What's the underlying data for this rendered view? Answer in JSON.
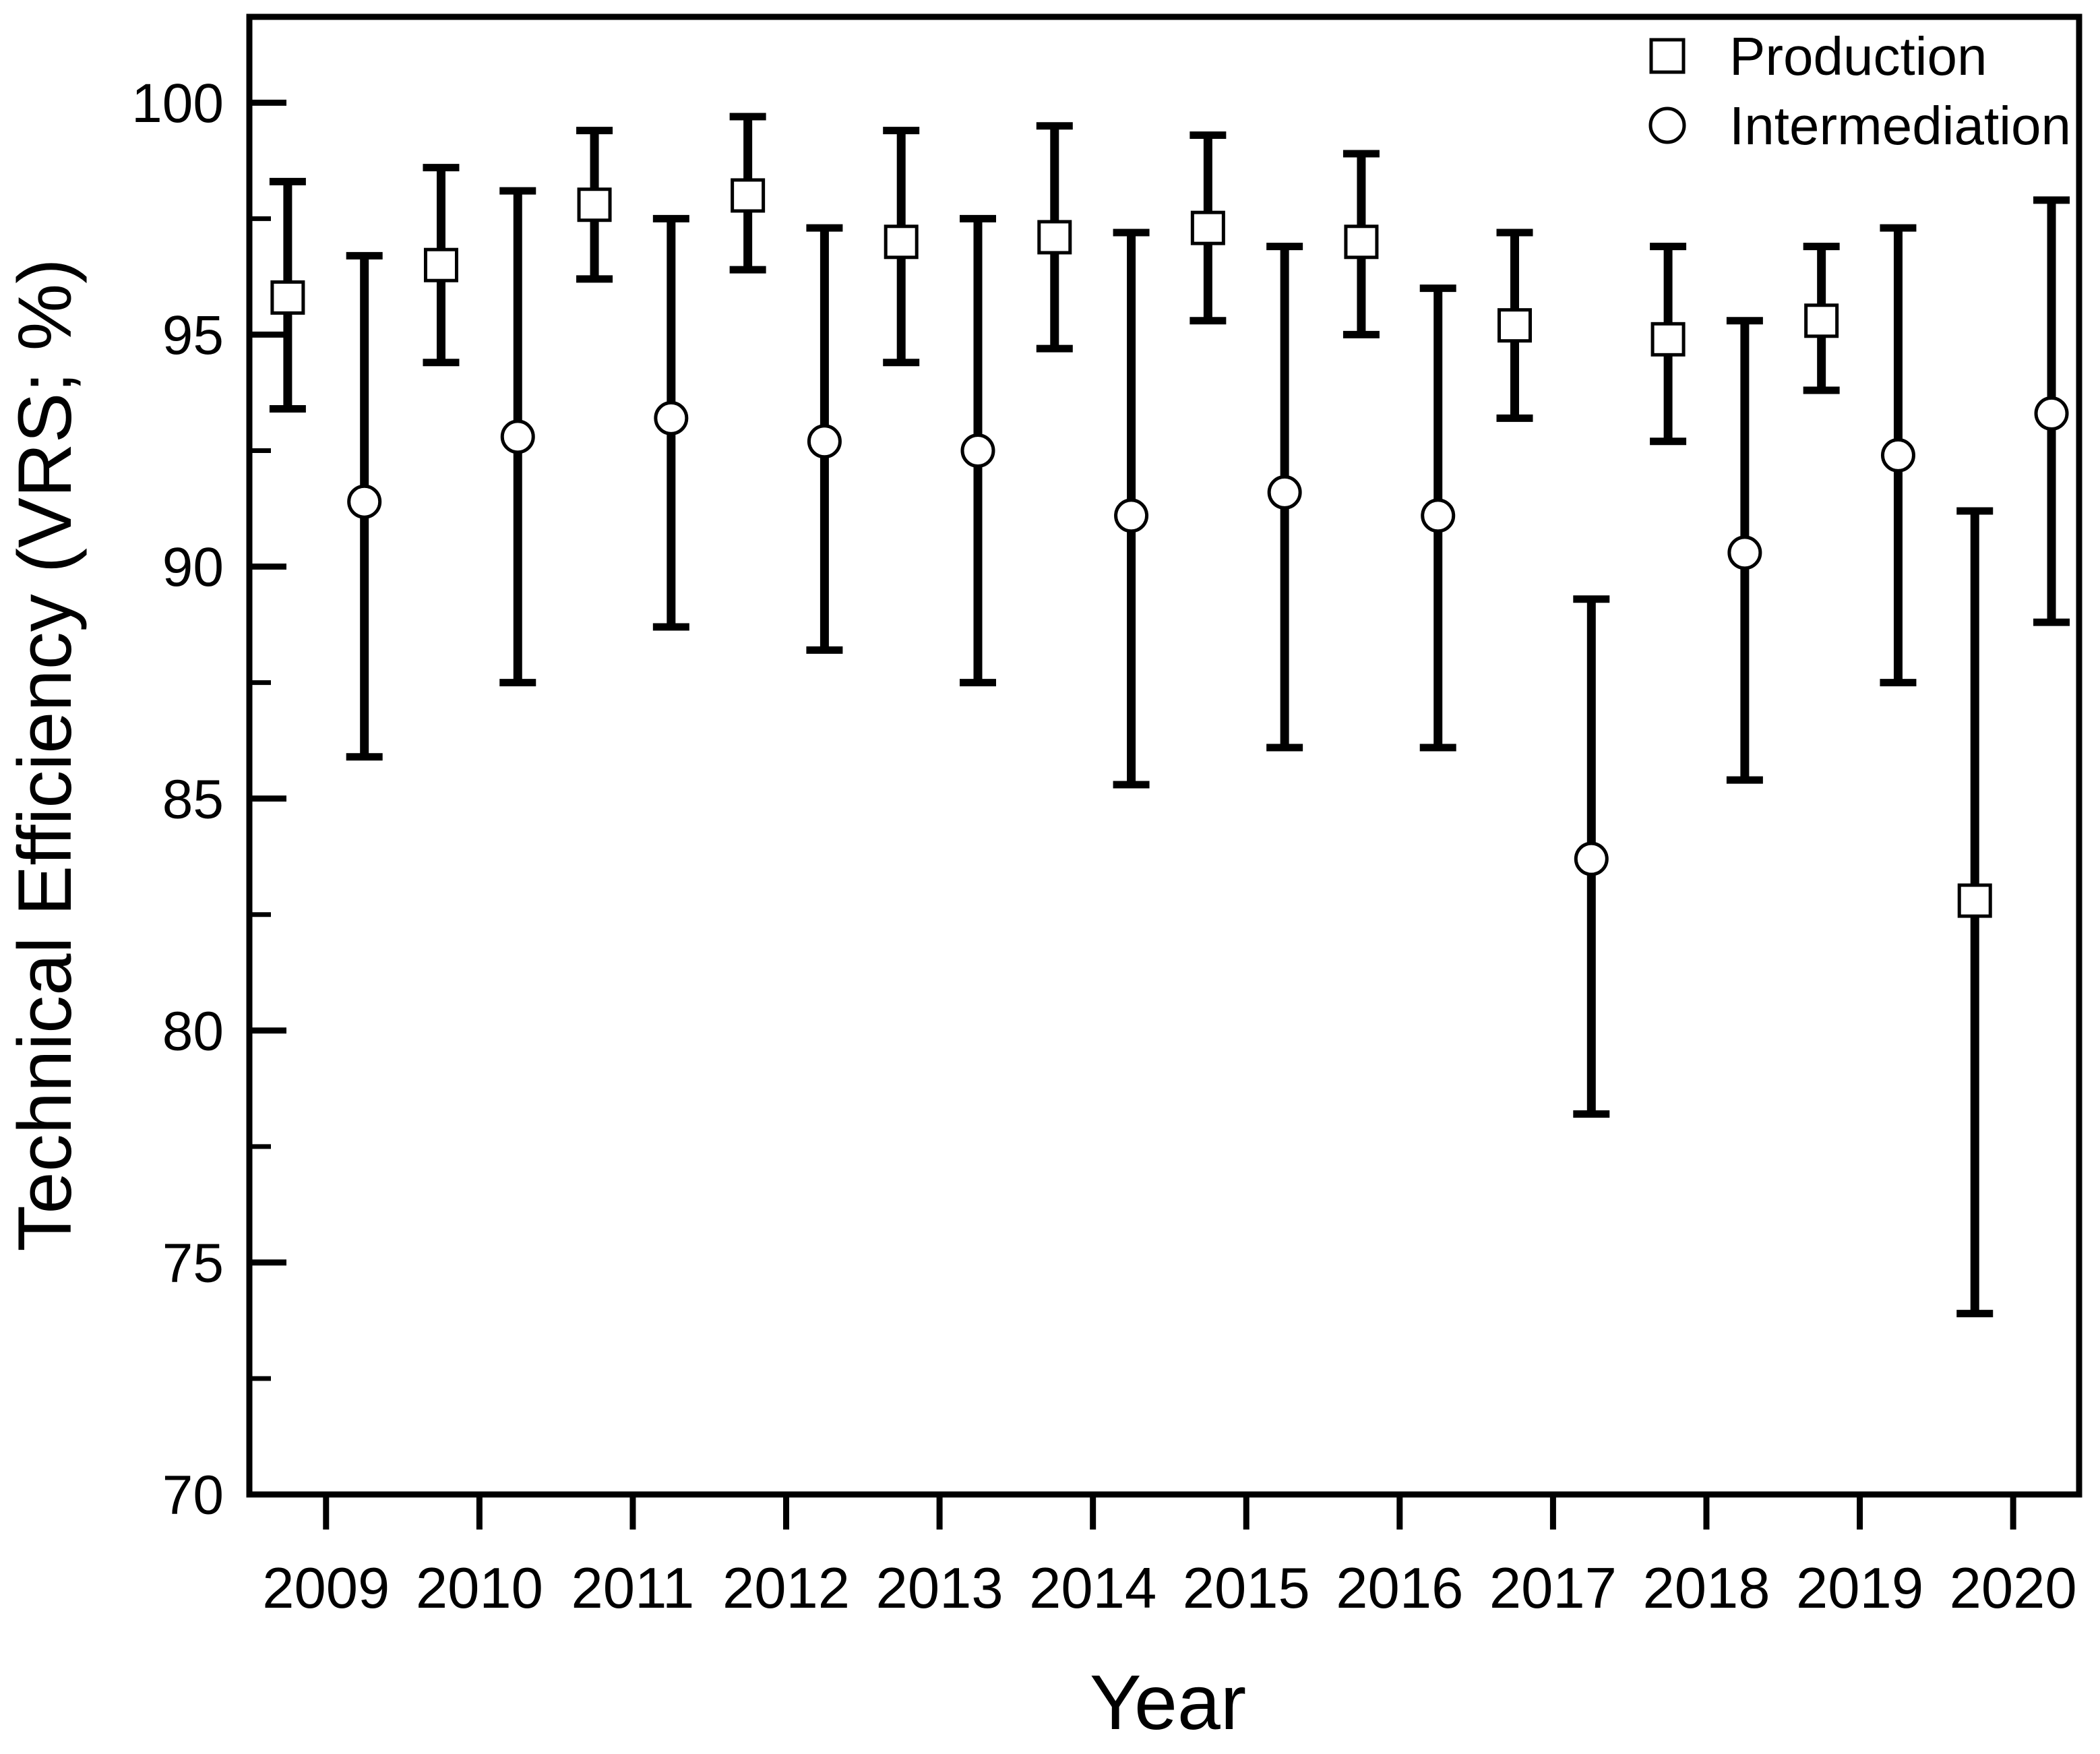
{
  "figure": {
    "background": "#ffffff",
    "foreground": "#000000"
  },
  "legend": {
    "position": "top-right",
    "items": [
      {
        "label": "Production",
        "marker": "square"
      },
      {
        "label": "Intermediation",
        "marker": "circle"
      }
    ]
  },
  "chart_data": {
    "type": "scatter",
    "title": "",
    "xlabel": "Year",
    "ylabel": "Technical Efficiency (VRS; %)",
    "x": [
      2009,
      2010,
      2011,
      2012,
      2013,
      2014,
      2015,
      2016,
      2017,
      2018,
      2019,
      2020
    ],
    "x_tick_labels": [
      "2009",
      "2010",
      "2011",
      "2012",
      "2013",
      "2014",
      "2015",
      "2016",
      "2017",
      "2018",
      "2019",
      "2020"
    ],
    "y_major_ticks": [
      70,
      75,
      80,
      85,
      90,
      95,
      100
    ],
    "y_minor_ticks": [
      72.5,
      77.5,
      82.5,
      87.5,
      92.5,
      97.5
    ],
    "xlim": [
      2008.5,
      2020.43
    ],
    "ylim": [
      70,
      101.85
    ],
    "grid": false,
    "error_bars": true,
    "series": [
      {
        "name": "Production",
        "marker": "square",
        "x_offset": -0.25,
        "values": [
          95.8,
          96.5,
          97.8,
          98.0,
          97.0,
          97.1,
          97.3,
          97.0,
          95.2,
          94.9,
          95.3,
          82.8
        ],
        "err_low": [
          93.4,
          94.4,
          96.2,
          96.4,
          94.4,
          94.7,
          95.3,
          95.0,
          93.2,
          92.7,
          93.8,
          73.9
        ],
        "err_high": [
          98.3,
          98.6,
          99.4,
          99.7,
          99.4,
          99.5,
          99.3,
          98.9,
          97.2,
          96.9,
          96.9,
          91.2
        ]
      },
      {
        "name": "Intermediation",
        "marker": "circle",
        "x_offset": 0.25,
        "values": [
          91.4,
          92.8,
          93.2,
          92.7,
          92.5,
          91.1,
          91.6,
          91.1,
          83.7,
          90.3,
          92.4,
          93.3
        ],
        "err_low": [
          85.9,
          87.5,
          88.7,
          88.2,
          87.5,
          85.3,
          86.1,
          86.1,
          78.2,
          85.4,
          87.5,
          88.8
        ],
        "err_high": [
          96.7,
          98.1,
          97.5,
          97.3,
          97.5,
          97.2,
          96.9,
          96.0,
          89.3,
          95.3,
          97.3,
          97.9
        ]
      }
    ]
  }
}
